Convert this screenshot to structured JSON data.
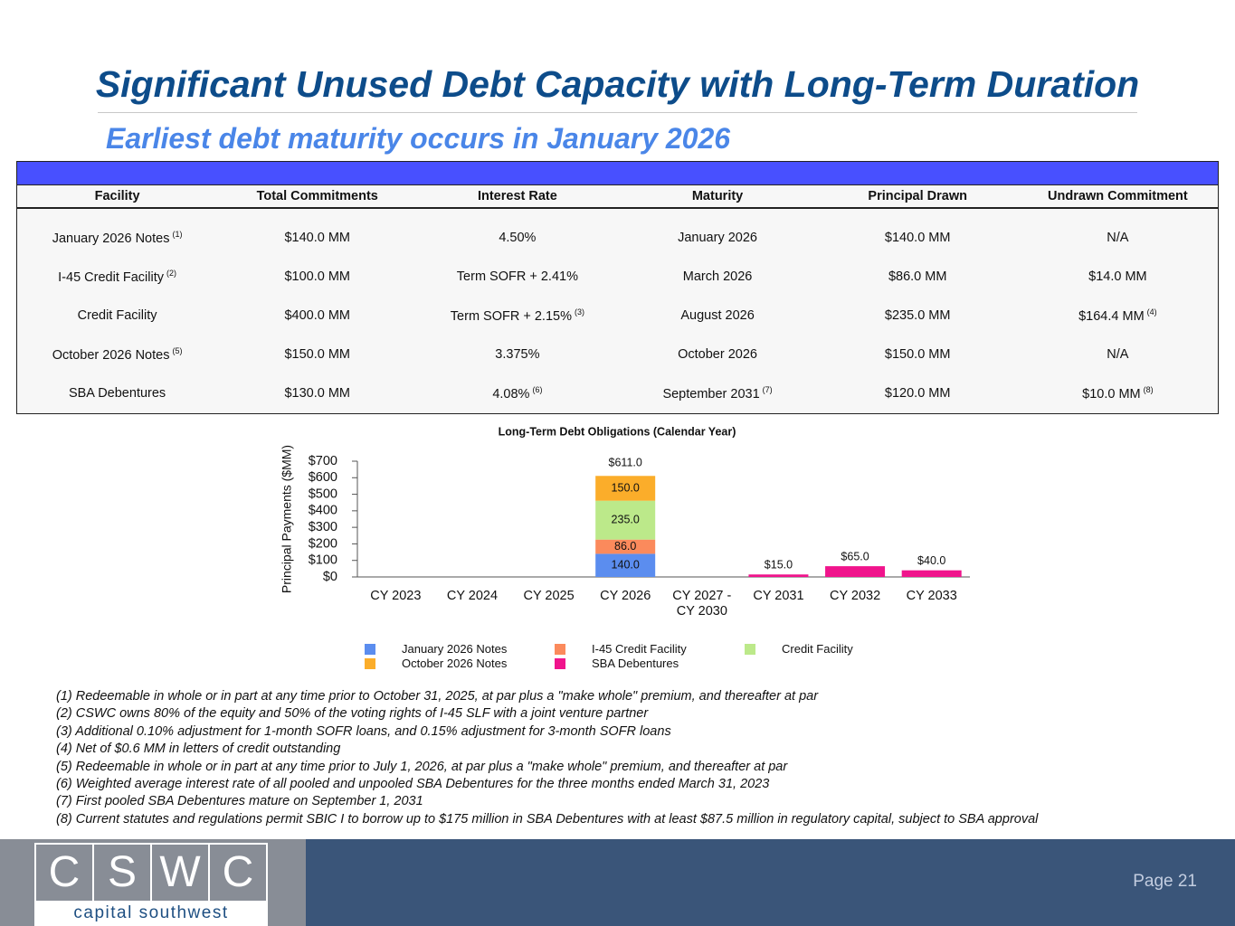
{
  "header": {
    "title": "Significant Unused Debt Capacity with Long-Term Duration",
    "subtitle": "Earliest debt maturity occurs in January 2026"
  },
  "table": {
    "columns": [
      "Facility",
      "Total Commitments",
      "Interest Rate",
      "Maturity",
      "Principal Drawn",
      "Undrawn Commitment"
    ],
    "rows": [
      [
        {
          "text": "January 2026 Notes",
          "note": "(1)"
        },
        {
          "text": "$140.0 MM"
        },
        {
          "text": "4.50%"
        },
        {
          "text": "January 2026"
        },
        {
          "text": "$140.0 MM"
        },
        {
          "text": "N/A"
        }
      ],
      [
        {
          "text": "I-45 Credit Facility",
          "note": "(2)"
        },
        {
          "text": "$100.0 MM"
        },
        {
          "text": "Term SOFR + 2.41%"
        },
        {
          "text": "March 2026"
        },
        {
          "text": "$86.0 MM"
        },
        {
          "text": "$14.0 MM"
        }
      ],
      [
        {
          "text": "Credit Facility"
        },
        {
          "text": "$400.0 MM"
        },
        {
          "text": "Term SOFR + 2.15%",
          "note": "(3)"
        },
        {
          "text": "August 2026"
        },
        {
          "text": "$235.0 MM"
        },
        {
          "text": "$164.4 MM",
          "note": "(4)"
        }
      ],
      [
        {
          "text": "October 2026 Notes",
          "note": "(5)"
        },
        {
          "text": "$150.0 MM"
        },
        {
          "text": "3.375%"
        },
        {
          "text": "October 2026"
        },
        {
          "text": "$150.0 MM"
        },
        {
          "text": "N/A"
        }
      ],
      [
        {
          "text": "SBA Debentures"
        },
        {
          "text": "$130.0 MM"
        },
        {
          "text": "4.08%",
          "note": "(6)"
        },
        {
          "text": "September 2031",
          "note": "(7)"
        },
        {
          "text": "$120.0 MM"
        },
        {
          "text": "$10.0 MM",
          "note": "(8)"
        }
      ]
    ]
  },
  "chart_data": {
    "type": "stacked_bar",
    "title": "Long-Term Debt Obligations (Calendar Year)",
    "y_label": "Principal Payments ($MM)",
    "categories": [
      "CY 2023",
      "CY 2024",
      "CY 2025",
      "CY 2026",
      "CY 2027 - CY 2030",
      "CY 2031",
      "CY 2032",
      "CY 2033"
    ],
    "ylim": [
      0,
      700
    ],
    "yticks": [
      {
        "value": 0,
        "label": "$0"
      },
      {
        "value": 100,
        "label": "$100"
      },
      {
        "value": 200,
        "label": "$200"
      },
      {
        "value": 300,
        "label": "$300"
      },
      {
        "value": 400,
        "label": "$400"
      },
      {
        "value": 500,
        "label": "$500"
      },
      {
        "value": 600,
        "label": "$600"
      },
      {
        "value": 700,
        "label": "$700"
      }
    ],
    "series": [
      {
        "name": "January 2026 Notes",
        "color": "#5b8def",
        "label_position": "inside",
        "values": [
          null,
          null,
          null,
          140,
          null,
          null,
          null,
          null
        ],
        "value_labels": [
          null,
          null,
          null,
          "140.0",
          null,
          null,
          null,
          null
        ]
      },
      {
        "name": "I-45 Credit Facility",
        "color": "#fb8a5c",
        "label_position": "inside",
        "values": [
          null,
          null,
          null,
          86,
          null,
          null,
          null,
          null
        ],
        "value_labels": [
          null,
          null,
          null,
          "86.0",
          null,
          null,
          null,
          null
        ]
      },
      {
        "name": "Credit Facility",
        "color": "#bce98a",
        "label_position": "inside",
        "values": [
          null,
          null,
          null,
          235,
          null,
          null,
          null,
          null
        ],
        "value_labels": [
          null,
          null,
          null,
          "235.0",
          null,
          null,
          null,
          null
        ]
      },
      {
        "name": "October 2026 Notes",
        "color": "#fbad2a",
        "label_position": "inside",
        "values": [
          null,
          null,
          null,
          150,
          null,
          null,
          null,
          null
        ],
        "value_labels": [
          null,
          null,
          null,
          "150.0",
          null,
          null,
          null,
          null
        ]
      },
      {
        "name": "SBA Debentures",
        "color": "#f0148c",
        "label_position": "above",
        "values": [
          null,
          null,
          null,
          null,
          null,
          15,
          65,
          40
        ],
        "value_labels": [
          null,
          null,
          null,
          null,
          null,
          "$15.0",
          "$65.0",
          "$40.0"
        ]
      }
    ],
    "totals": {
      "values": [
        null,
        null,
        null,
        611,
        null,
        null,
        null,
        null
      ],
      "value_labels": [
        null,
        null,
        null,
        "$611.0",
        null,
        null,
        null,
        null
      ]
    }
  },
  "footnotes": [
    "(1) Redeemable in whole or in part at any time prior to October 31, 2025, at par plus a \"make whole\" premium, and thereafter at par",
    "(2) CSWC owns 80% of the equity and 50% of the voting rights of I-45 SLF with a joint venture partner",
    "(3) Additional 0.10% adjustment for 1-month SOFR loans, and 0.15% adjustment for 3-month SOFR loans",
    "(4) Net of $0.6 MM in letters of credit outstanding",
    "(5) Redeemable in whole or in part at any time prior to July 1, 2026, at par plus a \"make whole\" premium, and thereafter at par",
    "(6) Weighted average interest rate of all pooled and unpooled SBA Debentures for the three months ended March 31, 2023",
    "(7) First pooled SBA Debentures mature on September 1, 2031",
    "(8) Current statutes and regulations permit SBIC I to borrow up to $175 million in SBA Debentures with at least $87.5 million in regulatory capital, subject to SBA approval"
  ],
  "footer": {
    "logo_letters": [
      "C",
      "S",
      "W",
      "C"
    ],
    "logo_tagline": "capital southwest",
    "page": "Page 21"
  }
}
